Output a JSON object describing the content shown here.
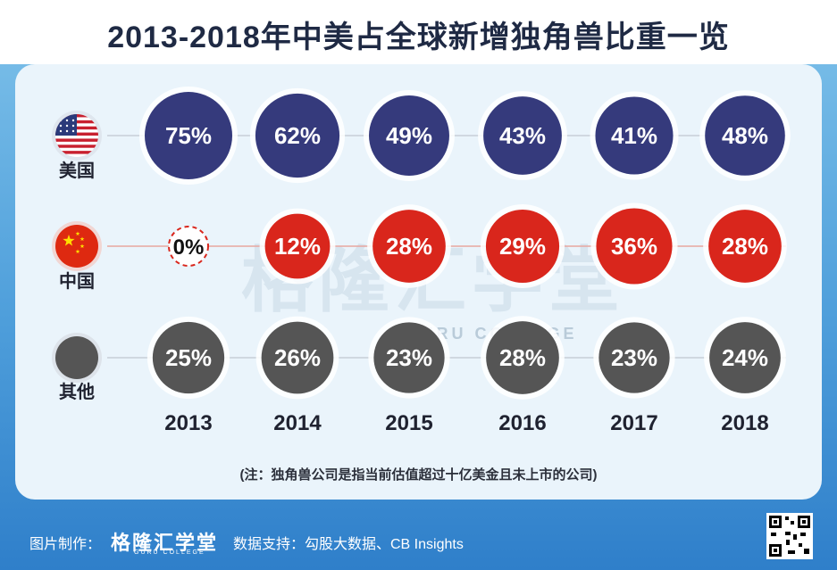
{
  "title": "2013-2018年中美占全球新增独角兽比重一览",
  "watermark": "格隆汇学堂",
  "watermark_sub": "GURU COLLEGE",
  "footnote": "(注：独角兽公司是指当前估值超过十亿美金且未上市的公司)",
  "footer": {
    "maker_label": "图片制作：",
    "brand": "格隆汇学堂",
    "brand_sub": "GURU COLLEGE",
    "source": "数据支持：勾股大数据、CB Insights"
  },
  "colors": {
    "usa": "#353a7c",
    "china": "#d9261c",
    "other": "#555555"
  },
  "chart_data": {
    "type": "table",
    "categories": [
      "2013",
      "2014",
      "2015",
      "2016",
      "2017",
      "2018"
    ],
    "series": [
      {
        "name": "美国",
        "values": [
          75,
          62,
          49,
          43,
          41,
          48
        ],
        "labels": [
          "75%",
          "62%",
          "49%",
          "43%",
          "41%",
          "48%"
        ]
      },
      {
        "name": "中国",
        "values": [
          0,
          12,
          28,
          29,
          36,
          28
        ],
        "labels": [
          "0%",
          "12%",
          "28%",
          "29%",
          "36%",
          "28%"
        ]
      },
      {
        "name": "其他",
        "values": [
          25,
          26,
          23,
          28,
          23,
          24
        ],
        "labels": [
          "25%",
          "26%",
          "23%",
          "28%",
          "23%",
          "24%"
        ]
      }
    ]
  }
}
